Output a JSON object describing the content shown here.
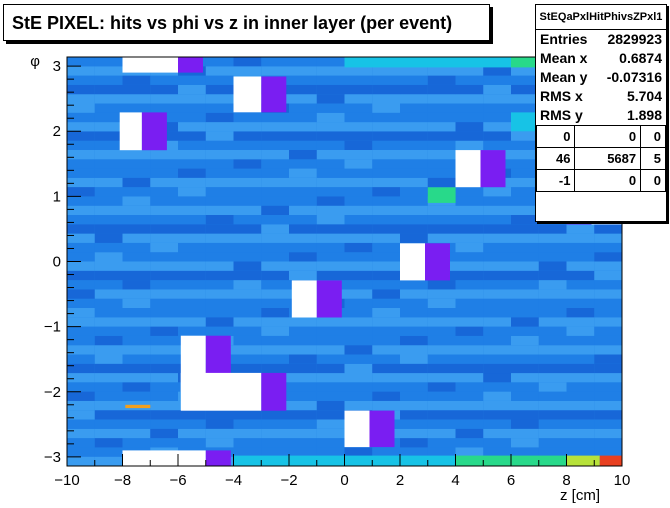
{
  "title": "StE PIXEL: hits vs phi vs z in inner layer (per event)",
  "stats": {
    "name": "StEQaPxlHitPhivsZPxl1",
    "rows": [
      {
        "label": "Entries",
        "value": "2829923"
      },
      {
        "label": "Mean x",
        "value": "0.6874"
      },
      {
        "label": "Mean y",
        "value": "-0.07316"
      },
      {
        "label": "RMS x",
        "value": "5.704"
      },
      {
        "label": "RMS y",
        "value": "1.898"
      }
    ],
    "grid": [
      [
        "0",
        "0",
        "0"
      ],
      [
        "46",
        "5687",
        "5"
      ],
      [
        "-1",
        "0",
        "0"
      ]
    ]
  },
  "chart_data": {
    "type": "heatmap",
    "title": "StE PIXEL: hits vs phi vs z in inner layer (per event)",
    "xlabel": "z [cm]",
    "ylabel": "φ",
    "xlim": [
      -10,
      10
    ],
    "ylim": [
      -3.14,
      3.14
    ],
    "x_ticks": [
      "−10",
      "−8",
      "−6",
      "−4",
      "−2",
      "0",
      "2",
      "4",
      "6",
      "8",
      "10"
    ],
    "y_ticks": [
      "−3",
      "−2",
      "−1",
      "0",
      "1",
      "2",
      "3"
    ],
    "colors": {
      "base": "#1f7fe6",
      "light": "#3a9cf0",
      "dark": "#1767d8",
      "cyan": "#17c3e6",
      "green": "#28d98a",
      "lime": "#b7e23a",
      "orange": "#f0a020",
      "red": "#e84020",
      "purple": "#7a1ef2",
      "empty": "#ffffff"
    },
    "dead_regions": [
      {
        "x": [
          -8,
          -6
        ],
        "y": [
          2.9,
          3.14
        ]
      },
      {
        "x": [
          -4,
          -3
        ],
        "y": [
          2.29,
          2.84
        ]
      },
      {
        "x": [
          -8.1,
          -7.3
        ],
        "y": [
          1.71,
          2.29
        ]
      },
      {
        "x": [
          4,
          4.9
        ],
        "y": [
          1.14,
          1.71
        ]
      },
      {
        "x": [
          8.9,
          10
        ],
        "y": [
          0.57,
          1.14
        ]
      },
      {
        "x": [
          2,
          2.9
        ],
        "y": [
          -0.29,
          0.28
        ]
      },
      {
        "x": [
          -1.9,
          -1
        ],
        "y": [
          -0.86,
          -0.29
        ]
      },
      {
        "x": [
          -5.9,
          -5
        ],
        "y": [
          -2.0,
          -1.14
        ]
      },
      {
        "x": [
          -5.9,
          -3
        ],
        "y": [
          -2.29,
          -1.71
        ]
      },
      {
        "x": [
          0,
          0.9
        ],
        "y": [
          -2.85,
          -2.29
        ]
      },
      {
        "x": [
          -8,
          -5
        ],
        "y": [
          -3.14,
          -2.9
        ]
      }
    ],
    "hot_cells": [
      {
        "x": [
          4,
          8
        ],
        "y": [
          -3.14,
          -2.98
        ],
        "level": "green"
      },
      {
        "x": [
          8,
          9.2
        ],
        "y": [
          -3.14,
          -2.98
        ],
        "level": "lime"
      },
      {
        "x": [
          9.2,
          10
        ],
        "y": [
          -3.14,
          -2.98
        ],
        "level": "red"
      },
      {
        "x": [
          0,
          4
        ],
        "y": [
          -3.14,
          -2.98
        ],
        "level": "cyan"
      },
      {
        "x": [
          -4,
          0
        ],
        "y": [
          -3.14,
          -2.98
        ],
        "level": "cyan"
      },
      {
        "x": [
          0,
          6
        ],
        "y": [
          2.98,
          3.14
        ],
        "level": "cyan"
      },
      {
        "x": [
          6,
          8.5
        ],
        "y": [
          2.98,
          3.14
        ],
        "level": "green"
      },
      {
        "x": [
          8.5,
          10
        ],
        "y": [
          2.98,
          3.14
        ],
        "level": "lime"
      },
      {
        "x": [
          -7.9,
          -7.0
        ],
        "y": [
          -2.25,
          -2.2
        ],
        "level": "orange"
      },
      {
        "x": [
          3,
          4
        ],
        "y": [
          0.9,
          1.14
        ],
        "level": "green"
      },
      {
        "x": [
          6,
          8.9
        ],
        "y": [
          2.0,
          2.29
        ],
        "level": "cyan"
      }
    ]
  },
  "axis": {
    "xlabel": "z [cm]",
    "ylabel": "φ"
  }
}
